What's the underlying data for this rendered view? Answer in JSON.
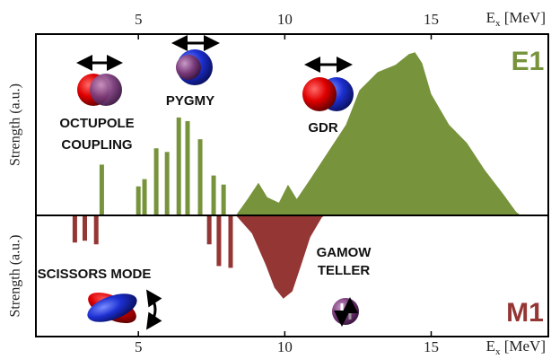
{
  "chart_data": [
    {
      "type": "spectrum",
      "label": "E1",
      "color": "#77933c",
      "x_label": {
        "main": "E",
        "sub": "x",
        "unit": " [MeV]"
      },
      "x_axis_side": "top",
      "y_label": "Strength (a.u.)",
      "xlim": [
        1.5,
        19
      ],
      "xticks": [
        5,
        10,
        15
      ],
      "ylim": [
        0,
        1
      ],
      "direction": "up",
      "series": [
        {
          "type": "bar",
          "color": "#77933c",
          "x": [
            3.75,
            5.0,
            5.21,
            5.61,
            5.98,
            6.38,
            6.68,
            7.11,
            7.57,
            7.91
          ],
          "values": [
            0.28,
            0.16,
            0.2,
            0.37,
            0.35,
            0.54,
            0.52,
            0.42,
            0.22,
            0.17
          ]
        },
        {
          "type": "area",
          "color": "#77933c",
          "x": [
            8.33,
            8.73,
            9.1,
            9.4,
            9.8,
            10.11,
            10.41,
            10.87,
            11.48,
            12.09,
            12.55,
            13.17,
            13.78,
            14.24,
            14.45,
            14.69,
            15.0,
            15.61,
            16.22,
            16.83,
            17.45,
            17.9,
            18.06
          ],
          "values": [
            0,
            0.09,
            0.18,
            0.1,
            0.07,
            0.17,
            0.09,
            0.2,
            0.35,
            0.5,
            0.69,
            0.79,
            0.83,
            0.89,
            0.9,
            0.84,
            0.67,
            0.5,
            0.4,
            0.25,
            0.12,
            0.02,
            0
          ]
        }
      ],
      "annotations": [
        {
          "lines": [
            "OCTUPOLE",
            "COUPLING"
          ]
        },
        {
          "lines": [
            "PYGMY"
          ]
        },
        {
          "lines": [
            "GDR"
          ]
        }
      ]
    },
    {
      "type": "spectrum",
      "label": "M1",
      "color": "#943634",
      "x_label": {
        "main": "E",
        "sub": "x",
        "unit": " [MeV]"
      },
      "x_axis_side": "bottom",
      "y_label": "Strength (a.u.)",
      "xlim": [
        1.5,
        19
      ],
      "xticks": [
        5,
        10,
        15
      ],
      "ylim": [
        0,
        0.67
      ],
      "direction": "down",
      "series": [
        {
          "type": "bar",
          "color": "#943634",
          "x": [
            2.83,
            3.17,
            3.56,
            7.42,
            7.75,
            8.15
          ],
          "values": [
            0.15,
            0.14,
            0.16,
            0.16,
            0.28,
            0.29
          ]
        },
        {
          "type": "area",
          "color": "#943634",
          "x": [
            8.33,
            8.88,
            9.34,
            9.65,
            9.95,
            10.26,
            10.57,
            10.87,
            11.27,
            11.39
          ],
          "values": [
            0,
            0.1,
            0.27,
            0.4,
            0.46,
            0.42,
            0.27,
            0.12,
            0.01,
            0
          ]
        }
      ],
      "annotations": [
        {
          "lines": [
            "SCISSORS MODE"
          ]
        },
        {
          "lines": [
            "GAMOW",
            "TELLER"
          ]
        }
      ]
    }
  ]
}
